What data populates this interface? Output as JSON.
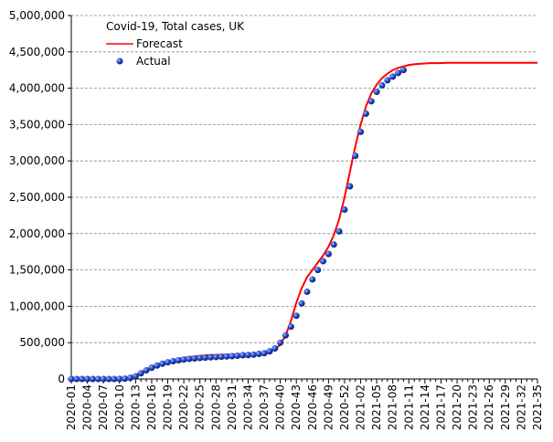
{
  "chart_data": {
    "type": "line",
    "title": "Covid-19, Total cases, UK",
    "legend": "upper left",
    "grid": true,
    "categories": [
      "2020-01",
      null,
      null,
      "2020-04",
      null,
      null,
      "2020-07",
      null,
      null,
      "2020-10",
      null,
      null,
      "2020-13",
      null,
      null,
      "2020-16",
      null,
      null,
      "2020-19",
      null,
      null,
      "2020-22",
      null,
      null,
      "2020-25",
      null,
      null,
      "2020-28",
      null,
      null,
      "2020-31",
      null,
      null,
      "2020-34",
      null,
      null,
      "2020-37",
      null,
      null,
      "2020-40",
      null,
      null,
      "2020-43",
      null,
      null,
      "2020-46",
      null,
      null,
      "2020-49",
      null,
      null,
      "2020-52",
      null,
      null,
      "2021-02",
      null,
      null,
      "2021-05",
      null,
      null,
      "2021-08",
      null,
      null,
      "2021-11",
      null,
      null,
      "2021-14",
      null,
      null,
      "2021-17",
      null,
      null,
      "2021-20",
      null,
      null,
      "2021-23",
      null,
      null,
      "2021-26",
      null,
      null,
      "2021-29",
      null,
      null,
      "2021-32",
      null,
      null,
      "2021-35"
    ],
    "ylim": [
      0,
      5000000
    ],
    "yticks": [
      {
        "value": 0,
        "label": "0"
      },
      {
        "value": 500000,
        "label": "500,000"
      },
      {
        "value": 1000000,
        "label": "1,000,000"
      },
      {
        "value": 1500000,
        "label": "1,500,000"
      },
      {
        "value": 2000000,
        "label": "2,000,000"
      },
      {
        "value": 2500000,
        "label": "2,500,000"
      },
      {
        "value": 3000000,
        "label": "3,000,000"
      },
      {
        "value": 3500000,
        "label": "3,500,000"
      },
      {
        "value": 4000000,
        "label": "4,000,000"
      },
      {
        "value": 4500000,
        "label": "4,500,000"
      },
      {
        "value": 5000000,
        "label": "5,000,000"
      }
    ],
    "series": [
      {
        "name": "Forecast",
        "type": "line",
        "color": "#ff0000",
        "values": [
          10000,
          10000,
          10000,
          10000,
          10000,
          10000,
          10000,
          10000,
          10000,
          10000,
          15000,
          30000,
          55000,
          90000,
          125000,
          160000,
          190000,
          215000,
          240000,
          260000,
          275000,
          290000,
          300000,
          310000,
          318000,
          325000,
          330000,
          332000,
          333000,
          334000,
          336000,
          338000,
          340000,
          342000,
          345000,
          350000,
          360000,
          380000,
          410000,
          470000,
          600000,
          800000,
          1050000,
          1250000,
          1400000,
          1500000,
          1600000,
          1700000,
          1820000,
          1980000,
          2200000,
          2500000,
          2850000,
          3200000,
          3500000,
          3750000,
          3930000,
          4050000,
          4140000,
          4200000,
          4250000,
          4280000,
          4300000,
          4320000,
          4330000,
          4335000,
          4340000,
          4345000,
          4345000,
          4345000,
          4350000,
          4350000,
          4350000,
          4350000,
          4350000,
          4350000,
          4350000,
          4350000,
          4350000,
          4350000,
          4350000,
          4350000,
          4350000,
          4350000,
          4350000,
          4350000,
          4350000,
          4350000
        ]
      },
      {
        "name": "Actual",
        "type": "scatter",
        "color": "#1f3fbf",
        "values": [
          0,
          0,
          0,
          0,
          0,
          0,
          0,
          0,
          0,
          1000,
          5000,
          17000,
          38000,
          78000,
          120000,
          155000,
          185000,
          210000,
          230000,
          245000,
          258000,
          268000,
          276000,
          283000,
          289000,
          294000,
          298000,
          302000,
          306000,
          310000,
          314000,
          320000,
          326000,
          330000,
          335000,
          345000,
          355000,
          380000,
          420000,
          500000,
          600000,
          720000,
          870000,
          1040000,
          1200000,
          1370000,
          1500000,
          1620000,
          1720000,
          1850000,
          2030000,
          2330000,
          2650000,
          3070000,
          3400000,
          3650000,
          3820000,
          3950000,
          4040000,
          4110000,
          4160000,
          4210000,
          4250000,
          null,
          null,
          null,
          null,
          null,
          null,
          null,
          null,
          null,
          null,
          null,
          null,
          null,
          null,
          null,
          null,
          null,
          null,
          null,
          null,
          null,
          null,
          null,
          null
        ]
      }
    ]
  }
}
